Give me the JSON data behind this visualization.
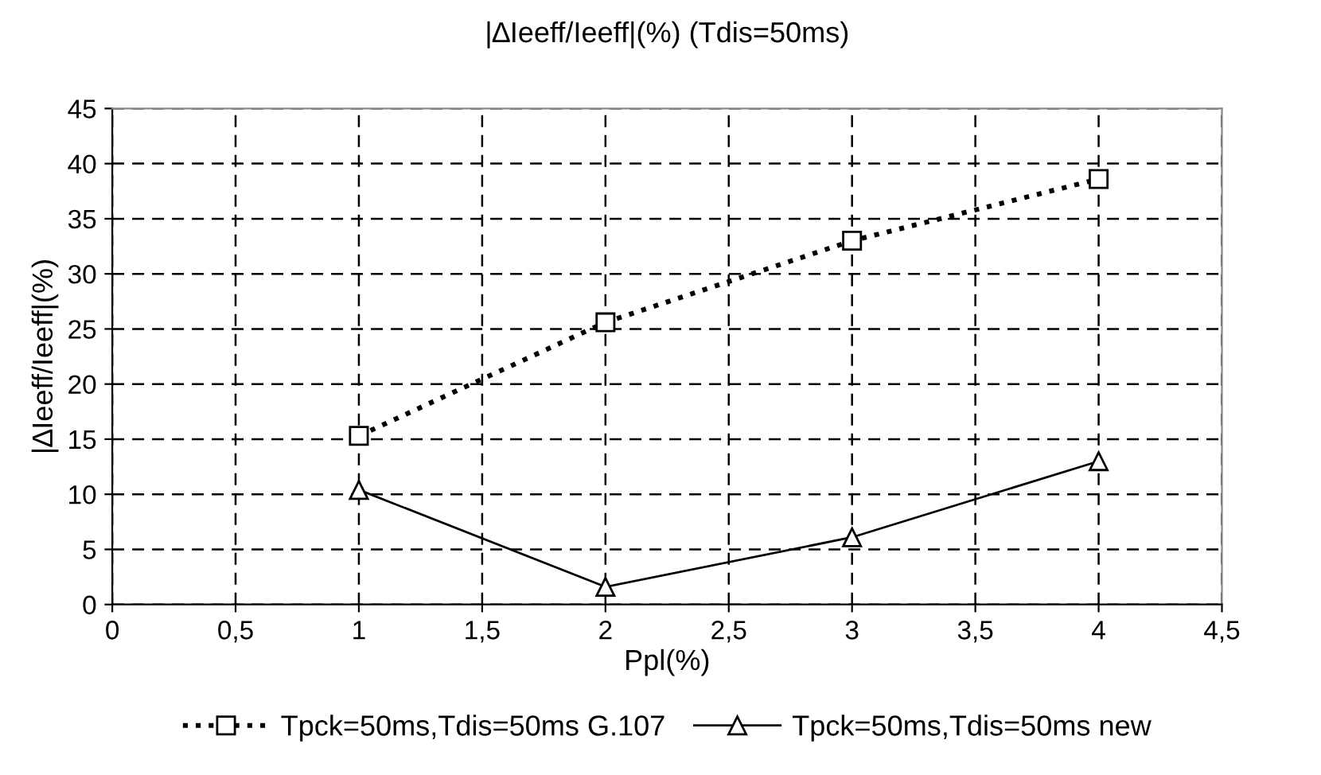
{
  "chart_data": {
    "type": "line",
    "title": "|∆Ieeff/Ieeff|(%) (Tdis=50ms)",
    "xlabel": "Ppl(%)",
    "ylabel": "|∆Ieeff/Ieeff|(%)",
    "x": [
      1,
      2,
      3,
      4
    ],
    "series": [
      {
        "name": "Tpck=50ms,Tdis=50ms G.107",
        "color": "#000000",
        "marker": "square",
        "line_style": "dotted",
        "values": [
          15.3,
          25.6,
          33.0,
          38.6
        ]
      },
      {
        "name": "Tpck=50ms,Tdis=50ms new",
        "color": "#000000",
        "marker": "triangle",
        "line_style": "solid",
        "values": [
          10.4,
          1.6,
          6.1,
          13.0
        ]
      }
    ],
    "xlim": [
      0,
      4.5
    ],
    "xticks": [
      0,
      {
        "value": 0.5,
        "label": "0,5"
      },
      1,
      {
        "value": 1.5,
        "label": "1,5"
      },
      2,
      {
        "value": 2.5,
        "label": "2,5"
      },
      3,
      {
        "value": 3.5,
        "label": "3,5"
      },
      4,
      {
        "value": 4.5,
        "label": "4,5"
      }
    ],
    "ylim": [
      0,
      45
    ],
    "yticks": [
      0,
      5,
      10,
      15,
      20,
      25,
      30,
      35,
      40,
      45
    ],
    "grid": true,
    "legend": "bottom"
  }
}
